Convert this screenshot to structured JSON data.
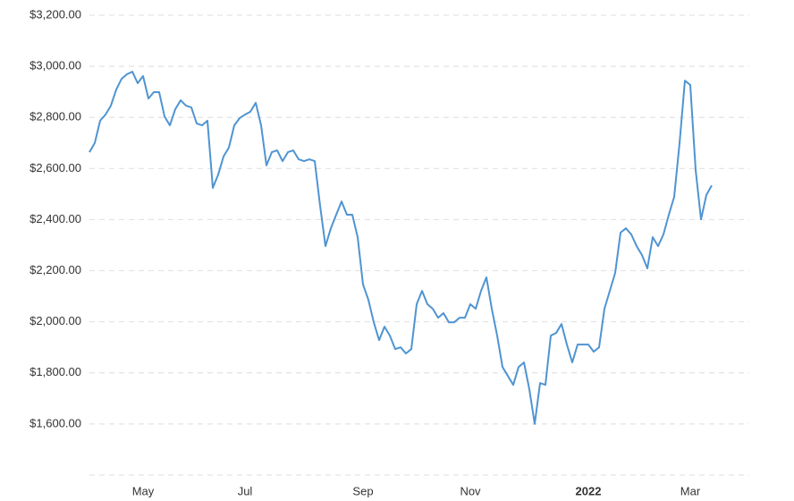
{
  "chart_data": {
    "type": "line",
    "categories": [
      null,
      null,
      null,
      null,
      null,
      null,
      null,
      null,
      null,
      null,
      "May",
      null,
      null,
      null,
      null,
      null,
      null,
      null,
      null,
      null,
      null,
      null,
      null,
      null,
      null,
      null,
      null,
      null,
      null,
      "Jul",
      null,
      null,
      null,
      null,
      null,
      null,
      null,
      null,
      null,
      null,
      null,
      null,
      null,
      null,
      null,
      null,
      null,
      null,
      null,
      null,
      null,
      "Sep",
      null,
      null,
      null,
      null,
      null,
      null,
      null,
      null,
      null,
      null,
      null,
      null,
      null,
      null,
      null,
      null,
      null,
      null,
      null,
      "Nov",
      null,
      null,
      null,
      null,
      null,
      null,
      null,
      null,
      null,
      null,
      null,
      null,
      null,
      null,
      null,
      null,
      null,
      null,
      null,
      null,
      null,
      "2022",
      null,
      null,
      null,
      null,
      null,
      null,
      null,
      null,
      null,
      null,
      null,
      null,
      null,
      null,
      null,
      null,
      null,
      null,
      "Mar",
      null,
      null,
      null,
      null,
      null,
      null,
      null,
      null,
      null,
      null,
      null
    ],
    "series": [
      {
        "color": "#4f94d1",
        "values": [
          2664,
          2700,
          2787,
          2811,
          2846,
          2909,
          2951,
          2969,
          2979,
          2934,
          2962,
          2874,
          2899,
          2899,
          2804,
          2769,
          2832,
          2867,
          2846,
          2839,
          2776,
          2769,
          2787,
          2524,
          2576,
          2647,
          2682,
          2769,
          2797,
          2811,
          2822,
          2857,
          2769,
          2612,
          2664,
          2671,
          2629,
          2664,
          2671,
          2636,
          2629,
          2636,
          2629,
          2454,
          2296,
          2366,
          2419,
          2471,
          2419,
          2419,
          2331,
          2146,
          2086,
          1998,
          1928,
          1981,
          1946,
          1893,
          1900,
          1876,
          1893,
          2069,
          2121,
          2069,
          2051,
          2016,
          2034,
          1998,
          1998,
          2016,
          2016,
          2069,
          2051,
          2121,
          2174,
          2051,
          1946,
          1823,
          1788,
          1753,
          1823,
          1841,
          1736,
          1600,
          1760,
          1753,
          1946,
          1956,
          1991,
          1911,
          1841,
          1911,
          1911,
          1911,
          1883,
          1900,
          2051,
          2121,
          2191,
          2349,
          2366,
          2342,
          2296,
          2261,
          2209,
          2331,
          2296,
          2342,
          2419,
          2489,
          2699,
          2944,
          2927,
          2594,
          2401,
          2496,
          2534,
          null,
          null,
          null,
          null,
          null,
          null,
          null
        ]
      }
    ],
    "ylim": [
      1400,
      3200
    ],
    "yticks": [
      {
        "value": 1600,
        "label": "$1,600.00"
      },
      {
        "value": 1800,
        "label": "$1,800.00"
      },
      {
        "value": 2000,
        "label": "$2,000.00"
      },
      {
        "value": 2200,
        "label": "$2,200.00"
      },
      {
        "value": 2400,
        "label": "$2,400.00"
      },
      {
        "value": 2600,
        "label": "$2,600.00"
      },
      {
        "value": 2800,
        "label": "$2,800.00"
      },
      {
        "value": 3000,
        "label": "$3,000.00"
      },
      {
        "value": 3200,
        "label": "$3,200.00"
      }
    ],
    "grid": true
  }
}
